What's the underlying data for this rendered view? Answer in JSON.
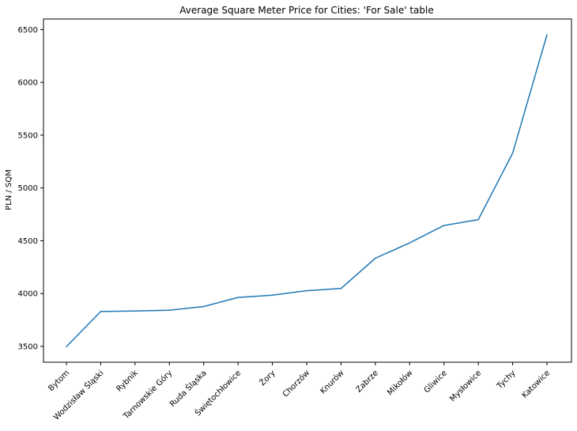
{
  "chart_data": {
    "type": "line",
    "title": "Average Square Meter Price for Cities: 'For Sale' table",
    "xlabel": "",
    "ylabel": "PLN / SQM",
    "categories": [
      "Bytom",
      "Wodzisław Śląski",
      "Rybnik",
      "Tarnowskie Góry",
      "Ruda Śląska",
      "Świętochłowice",
      "Żory",
      "Chorzów",
      "Knurów",
      "Zabrze",
      "Mikołów",
      "Gliwice",
      "Mysłowice",
      "Tychy",
      "Katowice"
    ],
    "series": [
      {
        "values": [
          3497,
          3830,
          3835,
          3843,
          3877,
          3963,
          3985,
          4027,
          4048,
          4335,
          4480,
          4645,
          4700,
          5330,
          6450
        ],
        "color": "#1f77b4"
      }
    ],
    "yticks": [
      3500,
      4000,
      4500,
      5000,
      5500,
      6000,
      6500
    ],
    "ylim": [
      3350,
      6600
    ],
    "grid": false,
    "legend": false
  }
}
